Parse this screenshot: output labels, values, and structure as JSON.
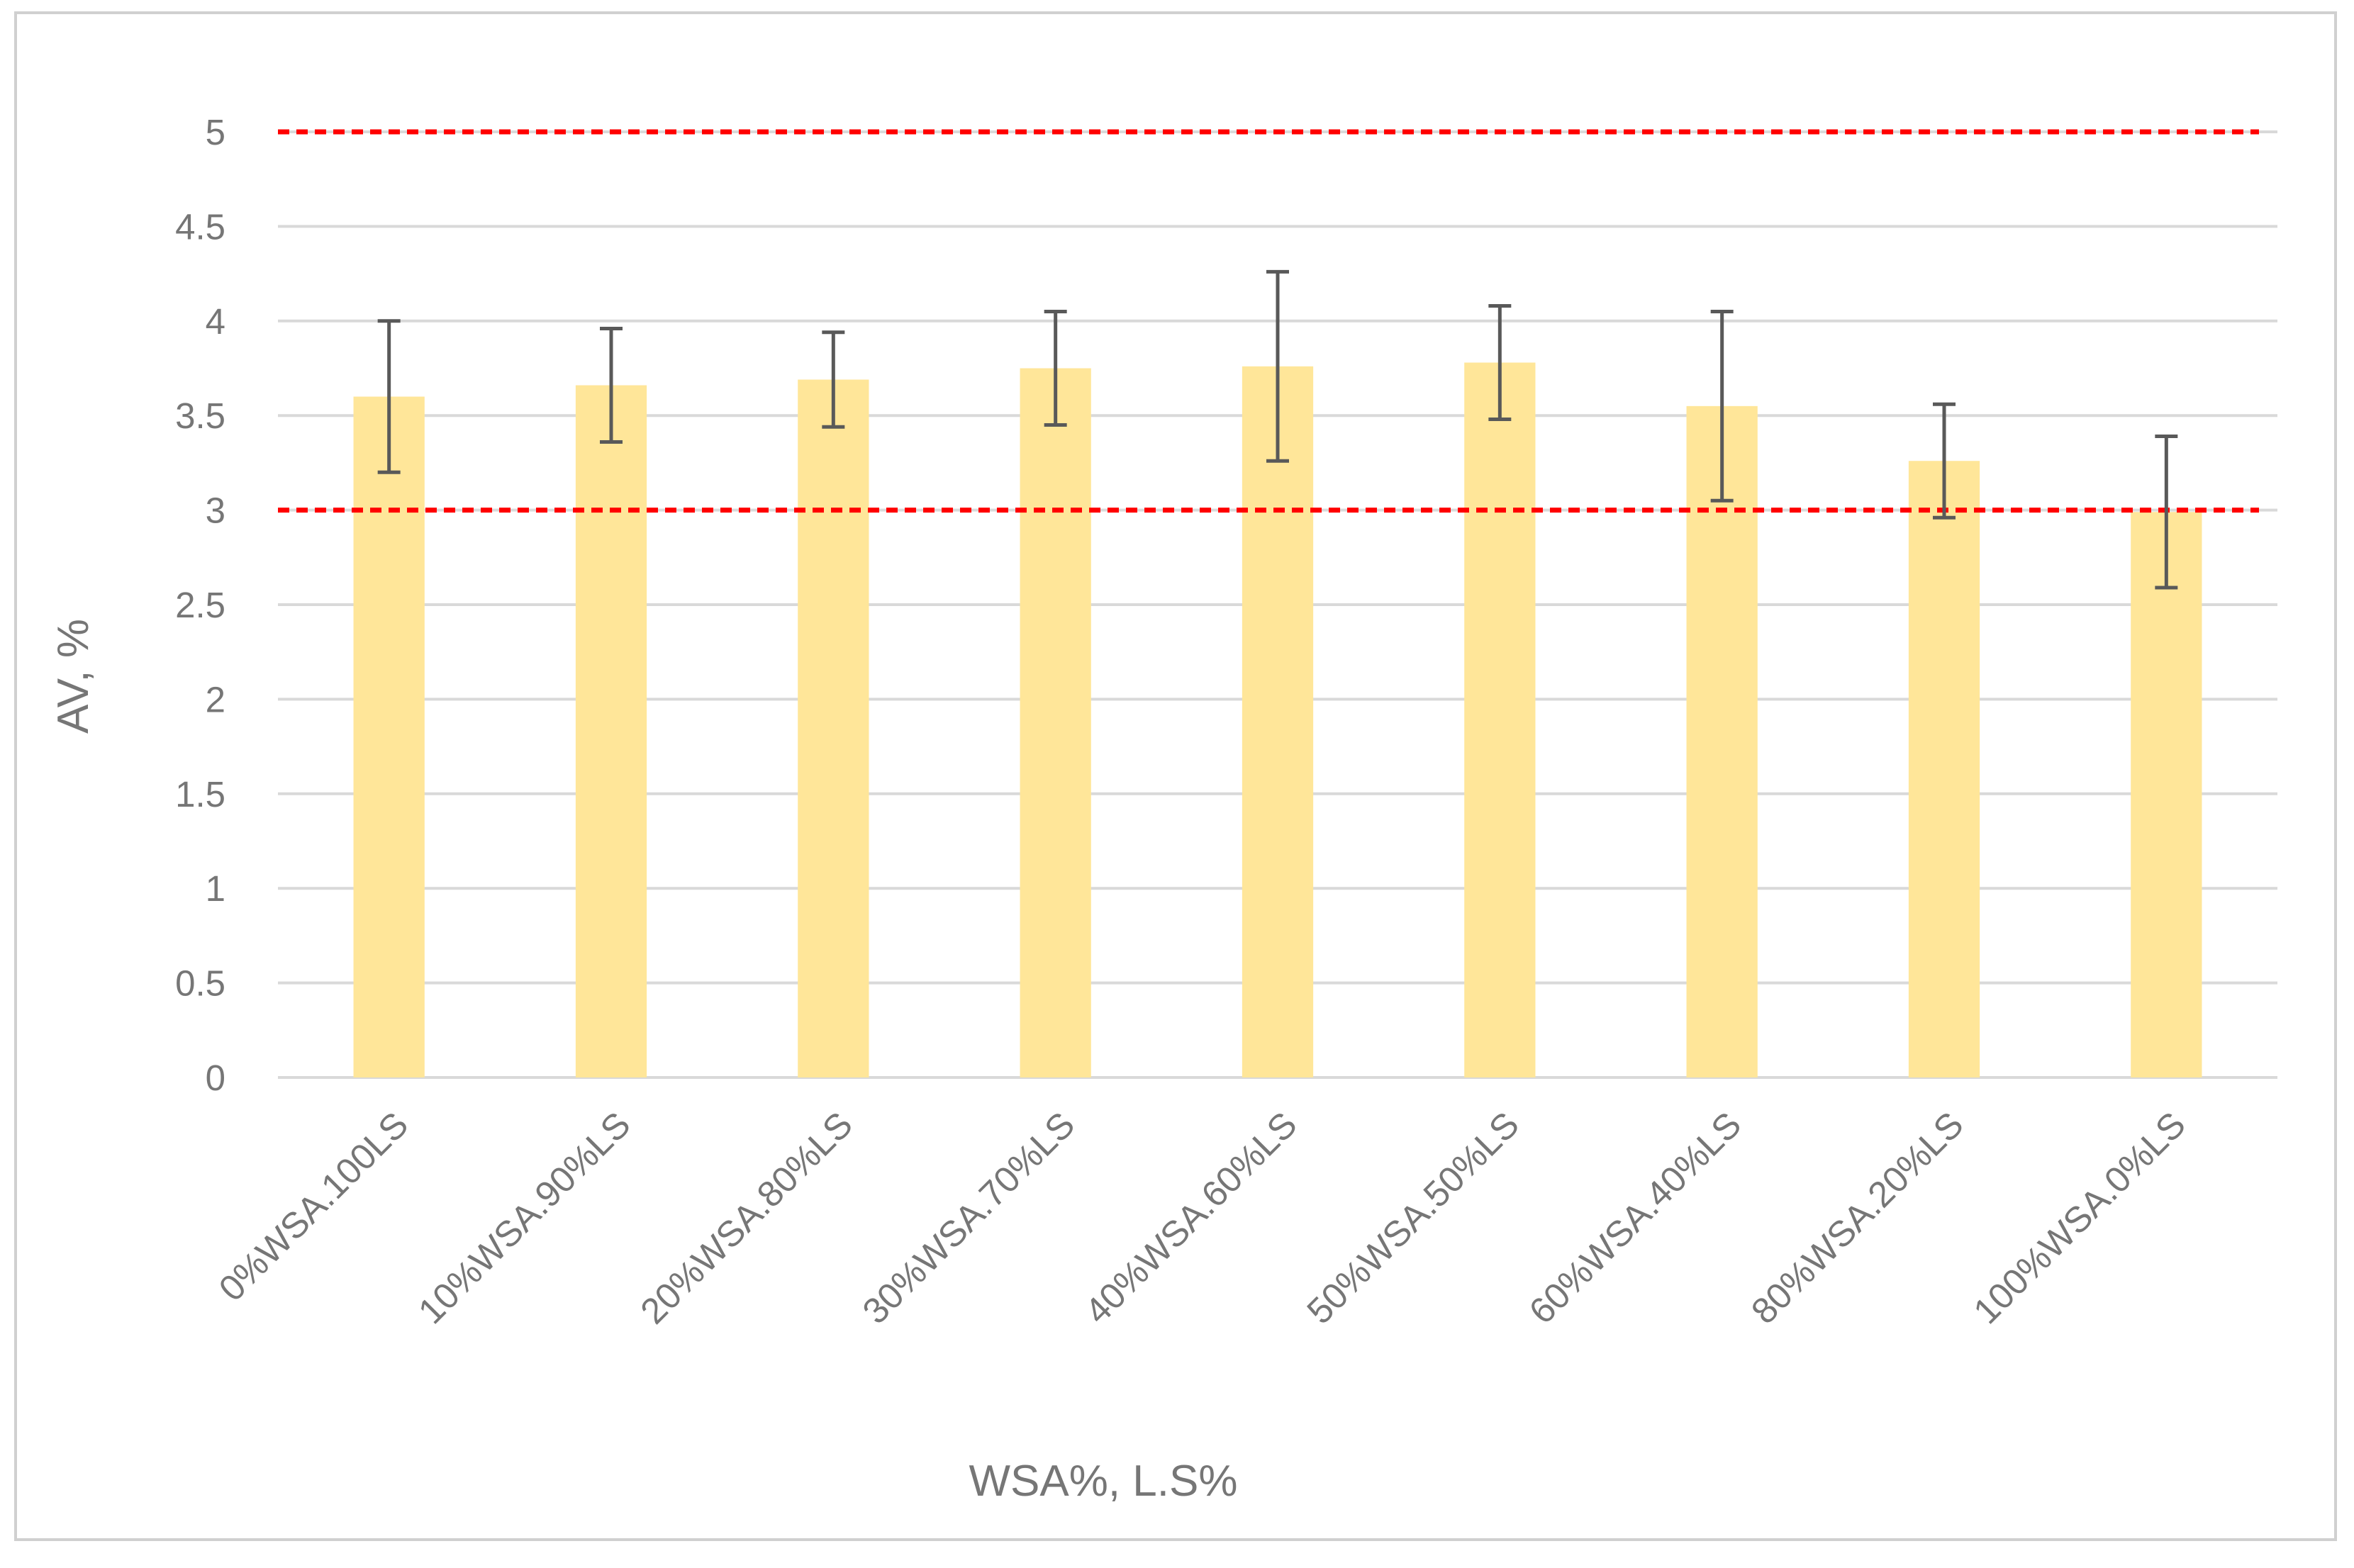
{
  "chart_data": {
    "type": "bar",
    "title": "",
    "xlabel": "WSA%, L.S%",
    "ylabel": "AV, %",
    "ylim": [
      0,
      5
    ],
    "yticks": [
      0,
      0.5,
      1,
      1.5,
      2,
      2.5,
      3,
      3.5,
      4,
      4.5,
      5
    ],
    "ytick_labels": [
      "0",
      "0.5",
      "1",
      "1.5",
      "2",
      "2.5",
      "3",
      "3.5",
      "4",
      "4.5",
      "5"
    ],
    "grid": true,
    "legend": "none",
    "categories": [
      "0%WSA.100LS",
      "10%WSA.90%LS",
      "20%WSA.80%LS",
      "30%WSA.70%LS",
      "40%WSA.60%LS",
      "50%WSA.50%LS",
      "60%WSA.40%LS",
      "80%WSA.20%LS",
      "100%WSA.0%LS"
    ],
    "values": [
      3.6,
      3.66,
      3.69,
      3.75,
      3.76,
      3.78,
      3.55,
      3.26,
      2.99
    ],
    "error": [
      0.4,
      0.3,
      0.25,
      0.3,
      0.5,
      0.3,
      0.5,
      0.3,
      0.4
    ],
    "reference_lines": [
      5,
      3
    ],
    "colors": {
      "bar": "#FFE699",
      "error_bar": "#595959",
      "reference_line": "#FF0000",
      "gridline": "#D9D9D9",
      "text": "#767676"
    }
  }
}
